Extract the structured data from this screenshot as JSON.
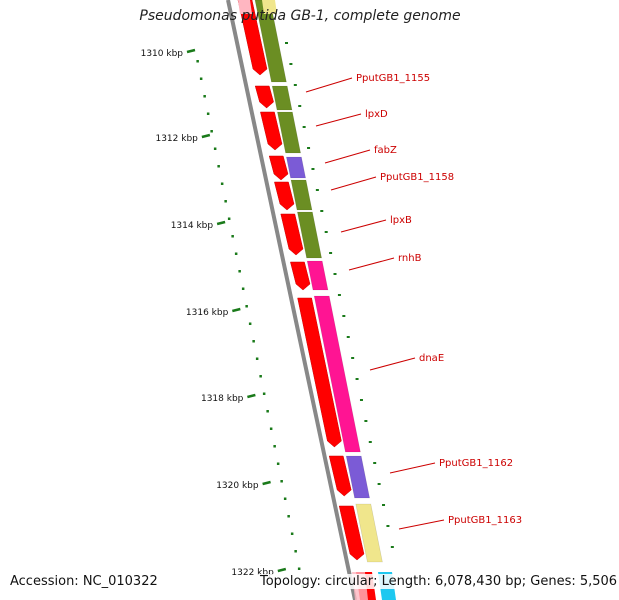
{
  "title": "Pseudomonas putida GB-1, complete genome",
  "footer": {
    "accession": "Accession: NC_010322",
    "summary": "Topology: circular; Length: 6,078,430 bp; Genes: 5,506"
  },
  "colors": {
    "backbone": "#888888",
    "cds": "#ff0000",
    "olive": "#6b8e23",
    "violet": "#7b5bd6",
    "magenta": "#ff1493",
    "pale_yellow": "#f0e68c",
    "cyan": "#1ec8f0",
    "pink": "#ffb6c1",
    "tick": "#1a7a1a",
    "label": "#cc0000"
  },
  "ticks": [
    {
      "label": "1310 kbp"
    },
    {
      "label": "1312 kbp"
    },
    {
      "label": "1314 kbp"
    },
    {
      "label": "1316 kbp"
    },
    {
      "label": "1318 kbp"
    },
    {
      "label": "1320 kbp"
    },
    {
      "label": "1322 kbp"
    }
  ],
  "genes": [
    {
      "name": "PputGB1_1155"
    },
    {
      "name": "lpxD"
    },
    {
      "name": "fabZ"
    },
    {
      "name": "PputGB1_1158"
    },
    {
      "name": "lpxB"
    },
    {
      "name": "rnhB"
    },
    {
      "name": "dnaE"
    },
    {
      "name": "PputGB1_1162"
    },
    {
      "name": "PputGB1_1163"
    }
  ]
}
